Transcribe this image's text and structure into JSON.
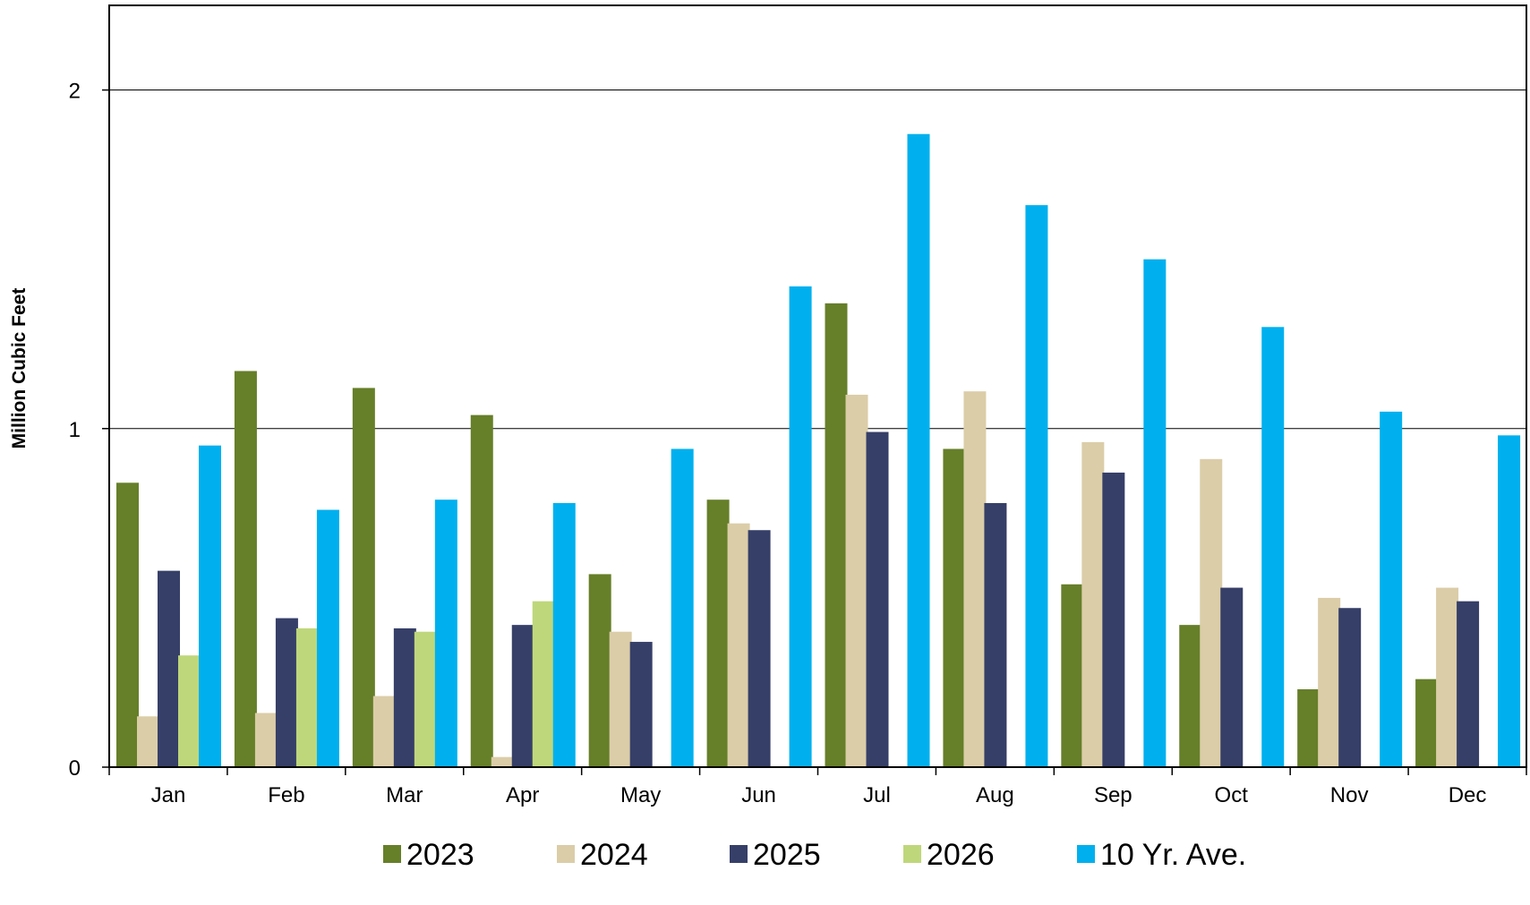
{
  "chart_data": {
    "type": "bar",
    "title": "",
    "xlabel": "",
    "ylabel": "Million Cubic Feet",
    "ylim": [
      0,
      2.25
    ],
    "yticks": [
      0,
      1,
      2
    ],
    "grid": true,
    "legend_position": "bottom",
    "categories": [
      "Jan",
      "Feb",
      "Mar",
      "Apr",
      "May",
      "Jun",
      "Jul",
      "Aug",
      "Sep",
      "Oct",
      "Nov",
      "Dec"
    ],
    "series": [
      {
        "name": "2023",
        "color": "#667f29",
        "values": [
          0.84,
          1.17,
          1.12,
          1.04,
          0.57,
          0.79,
          1.37,
          0.94,
          0.54,
          0.42,
          0.23,
          0.26
        ]
      },
      {
        "name": "2024",
        "color": "#dbcda8",
        "values": [
          0.15,
          0.16,
          0.21,
          0.03,
          0.4,
          0.72,
          1.1,
          1.11,
          0.96,
          0.91,
          0.5,
          0.53
        ]
      },
      {
        "name": "2025",
        "color": "#363f68",
        "values": [
          0.58,
          0.44,
          0.41,
          0.42,
          0.37,
          0.7,
          0.99,
          0.78,
          0.87,
          0.53,
          0.47,
          0.49
        ]
      },
      {
        "name": "2026",
        "color": "#bfd77b",
        "values": [
          0.33,
          0.41,
          0.4,
          0.49,
          null,
          null,
          null,
          null,
          null,
          null,
          null,
          null
        ]
      },
      {
        "name": "10 Yr. Ave.",
        "color": "#00b0ee",
        "values": [
          0.95,
          0.76,
          0.79,
          0.78,
          0.94,
          1.42,
          1.87,
          1.66,
          1.5,
          1.3,
          1.05,
          0.98
        ]
      }
    ]
  }
}
